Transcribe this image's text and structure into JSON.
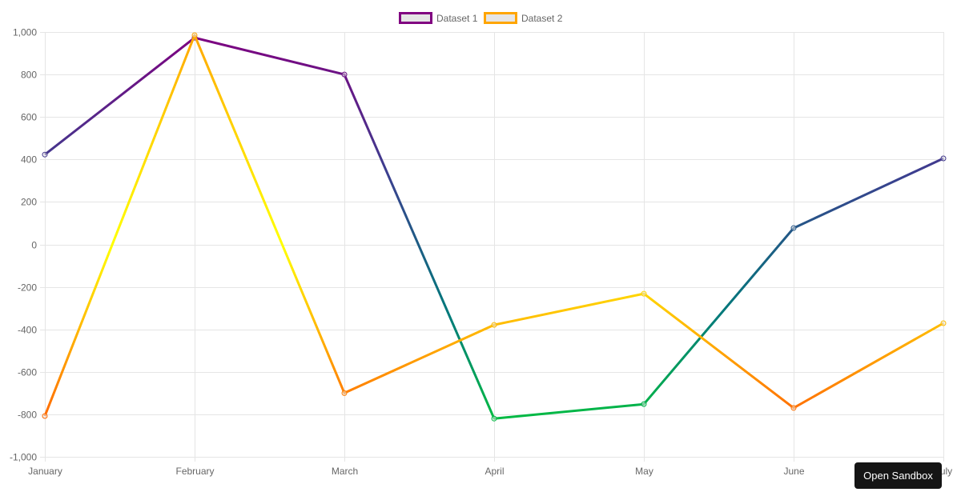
{
  "chart_data": {
    "type": "line",
    "title": "",
    "xlabel": "",
    "ylabel": "",
    "categories": [
      "January",
      "February",
      "March",
      "April",
      "May",
      "June",
      "July"
    ],
    "series": [
      {
        "name": "Dataset 1",
        "values": [
          423,
          973,
          800,
          -820,
          -752,
          77,
          405
        ],
        "legend_border_color": "#800080",
        "legend_fill_color": "#e5e5e5",
        "gradient": [
          "#800080",
          "#3b3f8f",
          "#007a7a",
          "#00d22e"
        ]
      },
      {
        "name": "Dataset 2",
        "values": [
          -808,
          985,
          -700,
          -379,
          -232,
          -770,
          -371
        ],
        "legend_border_color": "#ffa500",
        "legend_fill_color": "#e5e5e5",
        "gradient": [
          "#ffa500",
          "#ffd700",
          "#ffff00",
          "#ffa500",
          "#ff4500"
        ]
      }
    ],
    "ylim": [
      -1000,
      1000
    ],
    "y_ticks": [
      1000,
      800,
      600,
      400,
      200,
      0,
      -200,
      -400,
      -600,
      -800,
      -1000
    ],
    "y_tick_labels": [
      "1,000",
      "800",
      "600",
      "400",
      "200",
      "0",
      "-200",
      "-400",
      "-600",
      "-800",
      "-1,000"
    ],
    "grid": true,
    "legend_position": "top"
  },
  "overlay": {
    "open_sandbox_label": "Open Sandbox"
  }
}
